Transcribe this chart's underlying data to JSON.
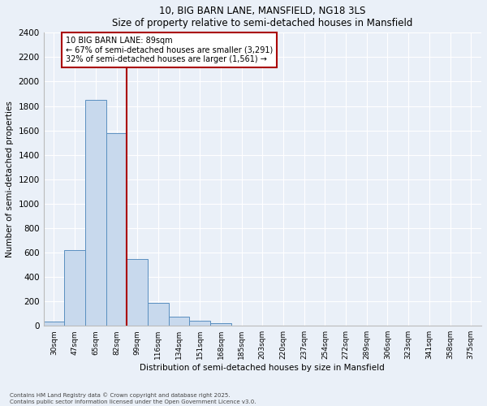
{
  "title1": "10, BIG BARN LANE, MANSFIELD, NG18 3LS",
  "title2": "Size of property relative to semi-detached houses in Mansfield",
  "xlabel": "Distribution of semi-detached houses by size in Mansfield",
  "ylabel": "Number of semi-detached properties",
  "bar_color": "#c8d9ed",
  "bar_edge_color": "#5a8fc0",
  "background_color": "#eaf0f8",
  "grid_color": "#ffffff",
  "categories": [
    "30sqm",
    "47sqm",
    "65sqm",
    "82sqm",
    "99sqm",
    "116sqm",
    "134sqm",
    "151sqm",
    "168sqm",
    "185sqm",
    "203sqm",
    "220sqm",
    "237sqm",
    "254sqm",
    "272sqm",
    "289sqm",
    "306sqm",
    "323sqm",
    "341sqm",
    "358sqm",
    "375sqm"
  ],
  "values": [
    35,
    620,
    1850,
    1580,
    550,
    185,
    75,
    40,
    20,
    0,
    0,
    0,
    0,
    0,
    0,
    0,
    0,
    0,
    0,
    0,
    0
  ],
  "ylim": [
    0,
    2400
  ],
  "yticks": [
    0,
    200,
    400,
    600,
    800,
    1000,
    1200,
    1400,
    1600,
    1800,
    2000,
    2200,
    2400
  ],
  "annotation_title": "10 BIG BARN LANE: 89sqm",
  "annotation_line1": "← 67% of semi-detached houses are smaller (3,291)",
  "annotation_line2": "32% of semi-detached houses are larger (1,561) →",
  "annotation_box_color": "#ffffff",
  "annotation_border_color": "#aa0000",
  "red_line_color": "#aa0000",
  "red_line_bin": 3,
  "footer1": "Contains HM Land Registry data © Crown copyright and database right 2025.",
  "footer2": "Contains public sector information licensed under the Open Government Licence v3.0."
}
